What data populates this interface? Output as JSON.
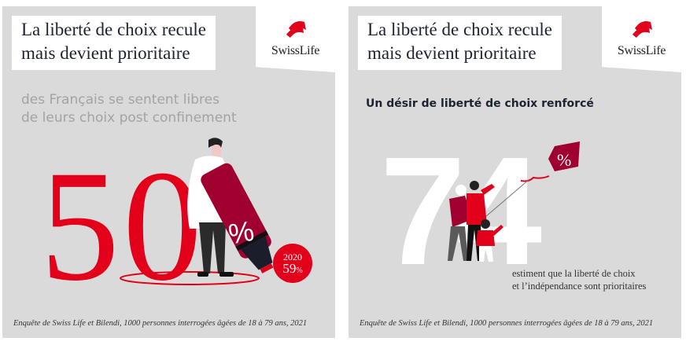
{
  "brand": {
    "name": "SwissLife",
    "color": "#e2001a",
    "dark_red": "#a00030"
  },
  "left_panel": {
    "title_line1": "La liberté de choix recule",
    "title_line2": "mais devient prioritaire",
    "subtitle_line1": "des Français se sentent libres",
    "subtitle_line2": "de leurs choix post confinement",
    "big_number": "50",
    "marker_symbol": "%",
    "badge_year": "2020",
    "badge_value": "59",
    "badge_unit": "%",
    "footer": "Enquête de Swiss Life et Bilendi, 1000 personnes interrogées âgées de 18 à 79 ans, 2021"
  },
  "right_panel": {
    "title_line1": "La liberté de choix recule",
    "title_line2": "mais devient prioritaire",
    "subtitle": "Un désir de liberté de choix renforcé",
    "big_number": "74",
    "kite_symbol": "%",
    "caption_line1": "estiment que la liberté de choix",
    "caption_line2": "et l’indépendance sont prioritaires",
    "footer": "Enquête de Swiss Life et Bilendi, 1000 personnes interrogées âgées de 18 à 79 ans, 2021"
  }
}
